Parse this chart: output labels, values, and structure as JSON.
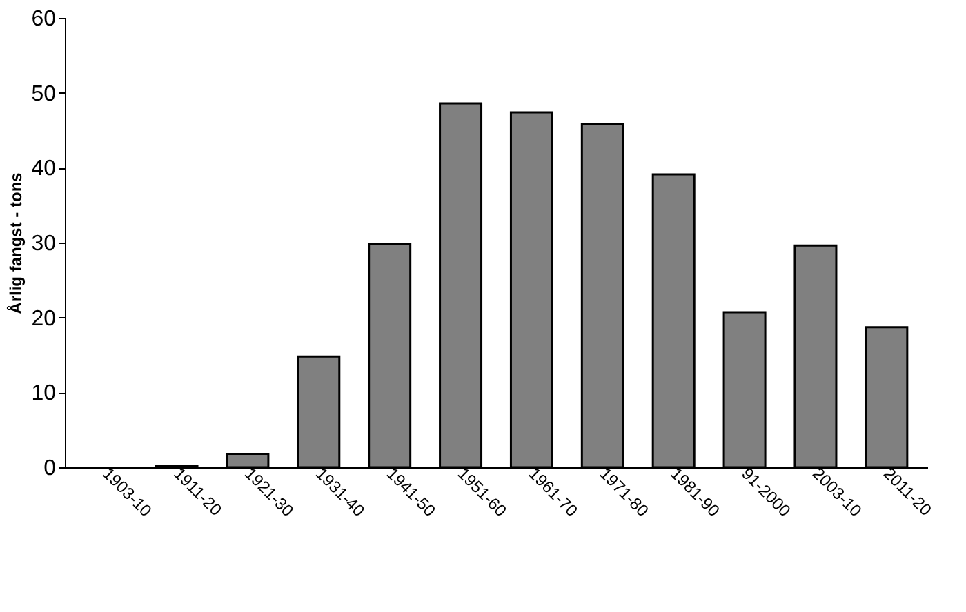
{
  "chart_data": {
    "type": "bar",
    "ylabel": "Årlig fangst - tons",
    "categories": [
      "1903-10",
      "1911-20",
      "1921-30",
      "1931-40",
      "1941-50",
      "1951-60",
      "1961-70",
      "1971-80",
      "1981-90",
      "91-2000",
      "2003-10",
      "2011-20"
    ],
    "values": [
      null,
      0.2,
      1.8,
      14.8,
      29.8,
      48.6,
      47.4,
      45.8,
      39.1,
      20.7,
      29.6,
      18.7
    ],
    "color": "#808080",
    "ylim": [
      0,
      60
    ],
    "yticks": [
      0,
      10,
      20,
      30,
      40,
      50,
      60
    ],
    "grid": false
  }
}
